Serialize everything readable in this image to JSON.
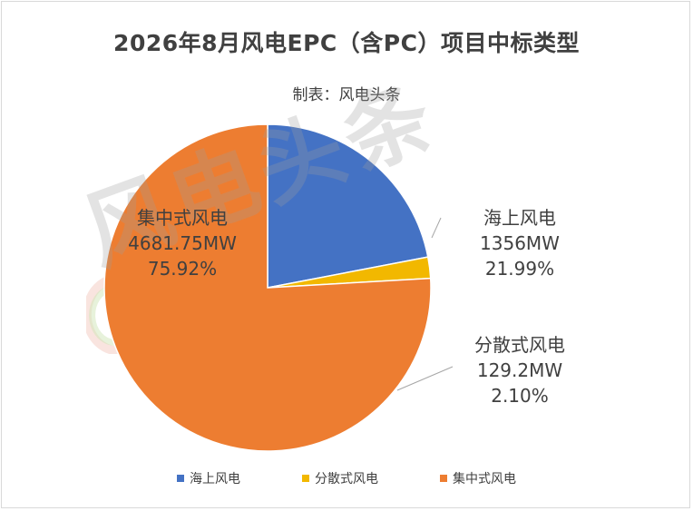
{
  "chart_data": {
    "type": "pie",
    "title": "2026年8月风电EPC（含PC）项目中标类型",
    "subtitle": "制表：风电头条",
    "slices": [
      {
        "name": "海上风电",
        "value": 1356,
        "value_label": "1356MW",
        "percent_label": "21.99%",
        "percent": 21.99,
        "color": "#4472C4"
      },
      {
        "name": "分散式风电",
        "value": 129.2,
        "value_label": "129.2MW",
        "percent_label": "2.10%",
        "percent": 2.1,
        "color": "#F2B800"
      },
      {
        "name": "集中式风电",
        "value": 4681.75,
        "value_label": "4681.75MW",
        "percent_label": "75.92%",
        "percent": 75.92,
        "color": "#ED7D31"
      }
    ],
    "legend_position": "bottom"
  },
  "watermark": "风电头条"
}
